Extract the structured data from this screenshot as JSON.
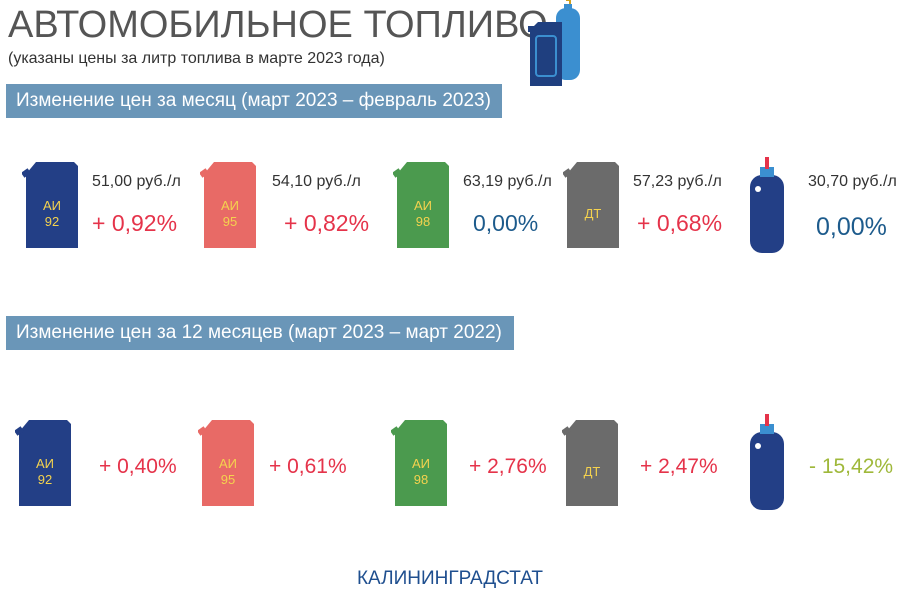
{
  "header": {
    "title": "АВТОМОБИЛЬНОЕ ТОПЛИВО",
    "subtitle": "(указаны цены за литр топлива в марте 2023 года)"
  },
  "section_month": {
    "heading": "Изменение цен за месяц (март 2023 – февраль 2023)",
    "items": [
      {
        "fuel": "АИ 92",
        "price": "51,00 руб./л",
        "change": "+ 0,92%"
      },
      {
        "fuel": "АИ 95",
        "price": "54,10 руб./л",
        "change": "+ 0,82%"
      },
      {
        "fuel": "АИ 98",
        "price": "63,19 руб./л",
        "change": "0,00%"
      },
      {
        "fuel": "ДТ",
        "price": "57,23 руб./л",
        "change": "+ 0,68%"
      },
      {
        "fuel": "gas-cylinder",
        "price": "30,70 руб./л",
        "change": "0,00%"
      }
    ]
  },
  "section_year": {
    "heading": "Изменение цен за 12 месяцев (март 2023 – март 2022)",
    "items": [
      {
        "fuel": "АИ 92",
        "change": "+ 0,40%"
      },
      {
        "fuel": "АИ 95",
        "change": "+ 0,61%"
      },
      {
        "fuel": "АИ 98",
        "change": "+ 2,76%"
      },
      {
        "fuel": "ДТ",
        "change": "+ 2,47%"
      },
      {
        "fuel": "gas-cylinder",
        "change": "- 15,42%"
      }
    ]
  },
  "can_labels": {
    "ai92_a": "АИ",
    "ai92_b": "92",
    "ai95_a": "АИ",
    "ai95_b": "95",
    "ai98_a": "АИ",
    "ai98_b": "98",
    "dt": "ДТ"
  },
  "colors": {
    "ai92": "#233f86",
    "ai95": "#e86a66",
    "ai98": "#4b9a4e",
    "dt": "#6b6b6b",
    "gas": "#233f86",
    "banner": "#6a96b8",
    "increase": "#e5334a",
    "zero": "#1d5b8c",
    "decrease": "#9fb83a"
  },
  "footer": "КАЛИНИНГРАДСТАТ"
}
